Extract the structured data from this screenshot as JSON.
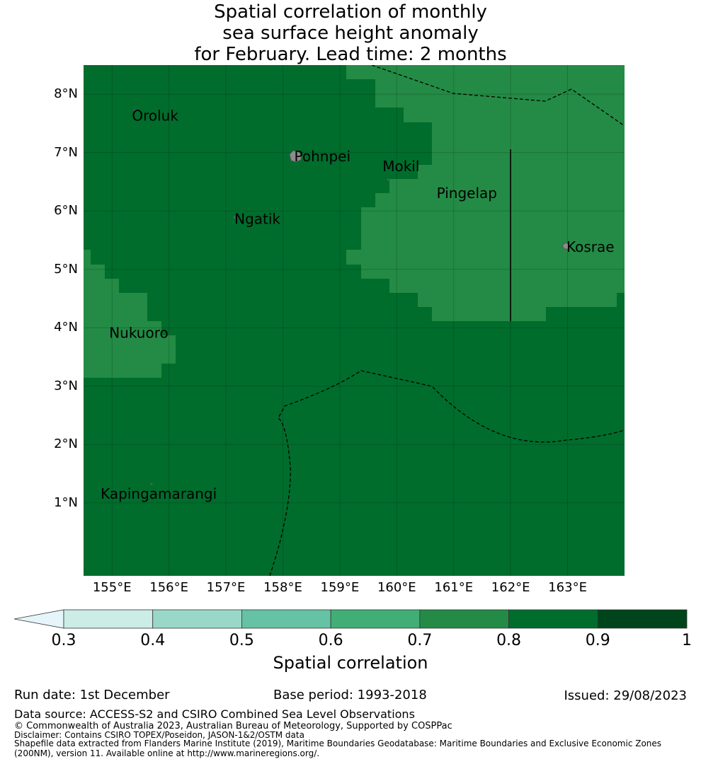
{
  "title": {
    "line1": "Spatial correlation of monthly",
    "line2": "sea surface height anomaly",
    "line3": "for February. Lead time: 2 months"
  },
  "map": {
    "lon_range": [
      154.5,
      164.0
    ],
    "lat_range": [
      -0.25,
      8.5
    ],
    "y_ticks": [
      "8°N",
      "7°N",
      "6°N",
      "5°N",
      "4°N",
      "3°N",
      "2°N",
      "1°N"
    ],
    "x_ticks": [
      "155°E",
      "156°E",
      "157°E",
      "158°E",
      "159°E",
      "160°E",
      "161°E",
      "162°E",
      "163°E"
    ],
    "colors": {
      "band_0_8_0_9": "#006d2c",
      "band_0_7_0_8": "#238b45",
      "land": "#8c8c8c"
    },
    "places": [
      {
        "name": "Oroluk",
        "lon": 155.35,
        "lat": 7.55
      },
      {
        "name": "Pohnpei",
        "lon": 158.2,
        "lat": 6.85
      },
      {
        "name": "Mokil",
        "lon": 159.75,
        "lat": 6.68
      },
      {
        "name": "Pingelap",
        "lon": 160.7,
        "lat": 6.22
      },
      {
        "name": "Ngatik",
        "lon": 157.15,
        "lat": 5.78
      },
      {
        "name": "Kosrae",
        "lon": 162.98,
        "lat": 5.3
      },
      {
        "name": "Nukuoro",
        "lon": 154.95,
        "lat": 3.83
      },
      {
        "name": "Kapingamarangi",
        "lon": 154.8,
        "lat": 1.07
      }
    ]
  },
  "colorbar": {
    "label": "Spatial correlation",
    "ticks": [
      "0.3",
      "0.4",
      "0.5",
      "0.6",
      "0.7",
      "0.8",
      "0.9",
      "1"
    ],
    "colors": [
      "#e5f5f9",
      "#ccece6",
      "#99d8c9",
      "#66c2a4",
      "#41ae76",
      "#238b45",
      "#006d2c",
      "#00441b"
    ]
  },
  "footer": {
    "run_date": "Run date: 1st December",
    "base_period": "Base period: 1993-2018",
    "issued": "Issued: 29/08/2023",
    "data_source": "Data source: ACCESS-S2 and CSIRO Combined Sea Level Observations",
    "copyright": "© Commonwealth of Australia 2023, Australian Bureau of Meteorology, Supported by COSPPac",
    "disclaimer": "Disclaimer: Contains CSIRO TOPEX/Poseidon, JASON-1&2/OSTM data",
    "shapefile1": "Shapefile data extracted from Flanders Marine Institute (2019), Maritime Boundaries Geodatabase: Maritime Boundaries and Exclusive Economic Zones",
    "shapefile2": "(200NM), version 11. Available online at http://www.marineregions.org/."
  }
}
